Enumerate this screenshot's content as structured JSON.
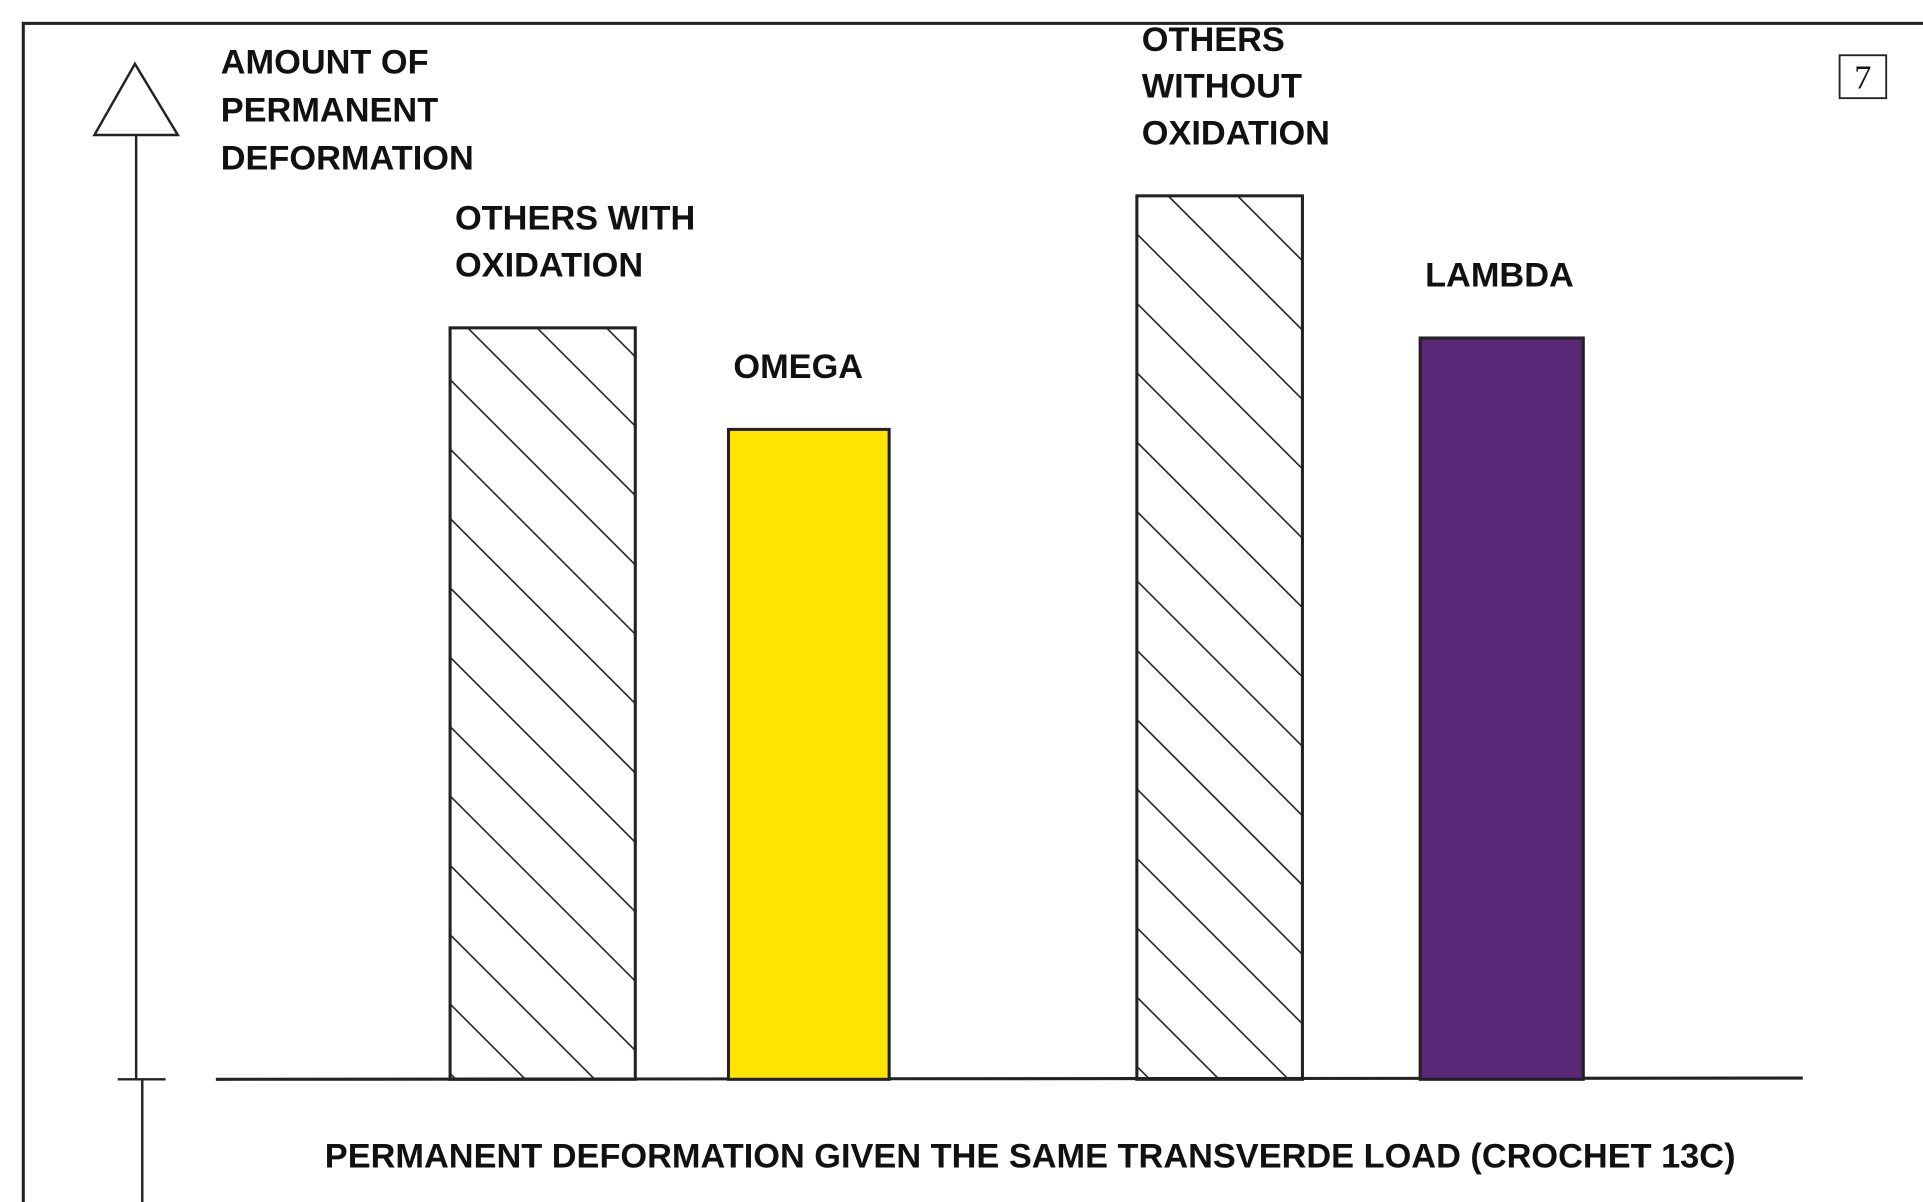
{
  "chart_data": {
    "type": "bar",
    "ylabel": [
      "AMOUNT OF",
      "PERMANENT",
      "DEFORMATION"
    ],
    "xlabel": "PERMANENT DEFORMATION GIVEN THE SAME TRANSVERDE LOAD (CROCHET 13C)",
    "page_number": "7",
    "categories": [
      [
        "OTHERS WITH",
        "OXIDATION"
      ],
      [
        "OMEGA"
      ],
      [
        "OTHERS",
        "WITHOUT",
        "OXIDATION"
      ],
      [
        "LAMBDA"
      ]
    ],
    "values": [
      74,
      64,
      87,
      73
    ],
    "colors": [
      "#ffffff",
      "#ffe500",
      "#ffffff",
      "#5b2878"
    ],
    "patterns": [
      "hatch",
      null,
      "hatch",
      null
    ],
    "ylim": [
      0,
      100
    ]
  }
}
